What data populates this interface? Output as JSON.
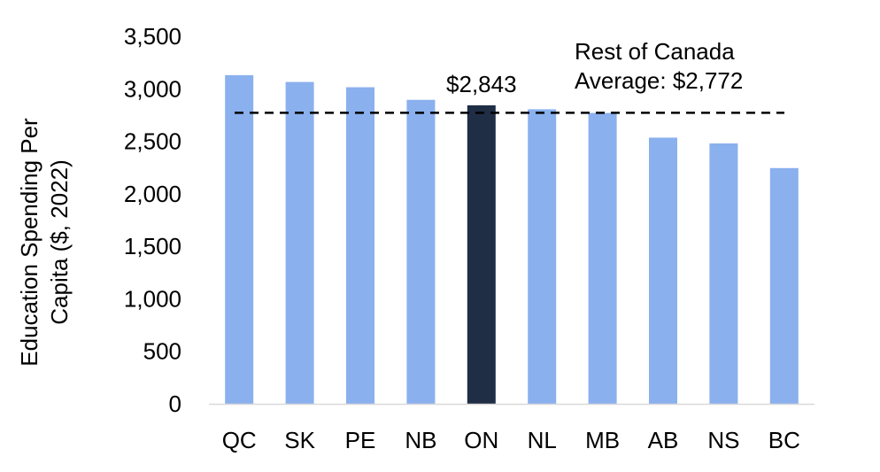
{
  "chart_data": {
    "type": "bar",
    "title": "",
    "xlabel": "",
    "ylabel_lines": [
      "Education Spending Per",
      "Capita ($, 2022)"
    ],
    "categories": [
      "QC",
      "SK",
      "PE",
      "NB",
      "ON",
      "NL",
      "MB",
      "AB",
      "NS",
      "BC"
    ],
    "values": [
      3130,
      3065,
      3015,
      2895,
      2843,
      2805,
      2770,
      2535,
      2480,
      2245
    ],
    "highlight_category": "ON",
    "highlight_label": "$2,843",
    "ylim": [
      0,
      3500
    ],
    "yticks": [
      0,
      500,
      1000,
      1500,
      2000,
      2500,
      3000,
      3500
    ],
    "ytick_labels": [
      "0",
      "500",
      "1,000",
      "1,500",
      "2,000",
      "2,500",
      "3,000",
      "3,500"
    ],
    "reference_line": {
      "value": 2772,
      "style": "dashed",
      "label_lines": [
        "Rest of Canada",
        "Average: $2,772"
      ]
    },
    "grid": false,
    "legend": "none",
    "colors": {
      "bar": "#8AB0EE",
      "highlight_bar": "#1F2D45",
      "reference_line": "#000000",
      "axis": "#D9D9D9"
    }
  }
}
